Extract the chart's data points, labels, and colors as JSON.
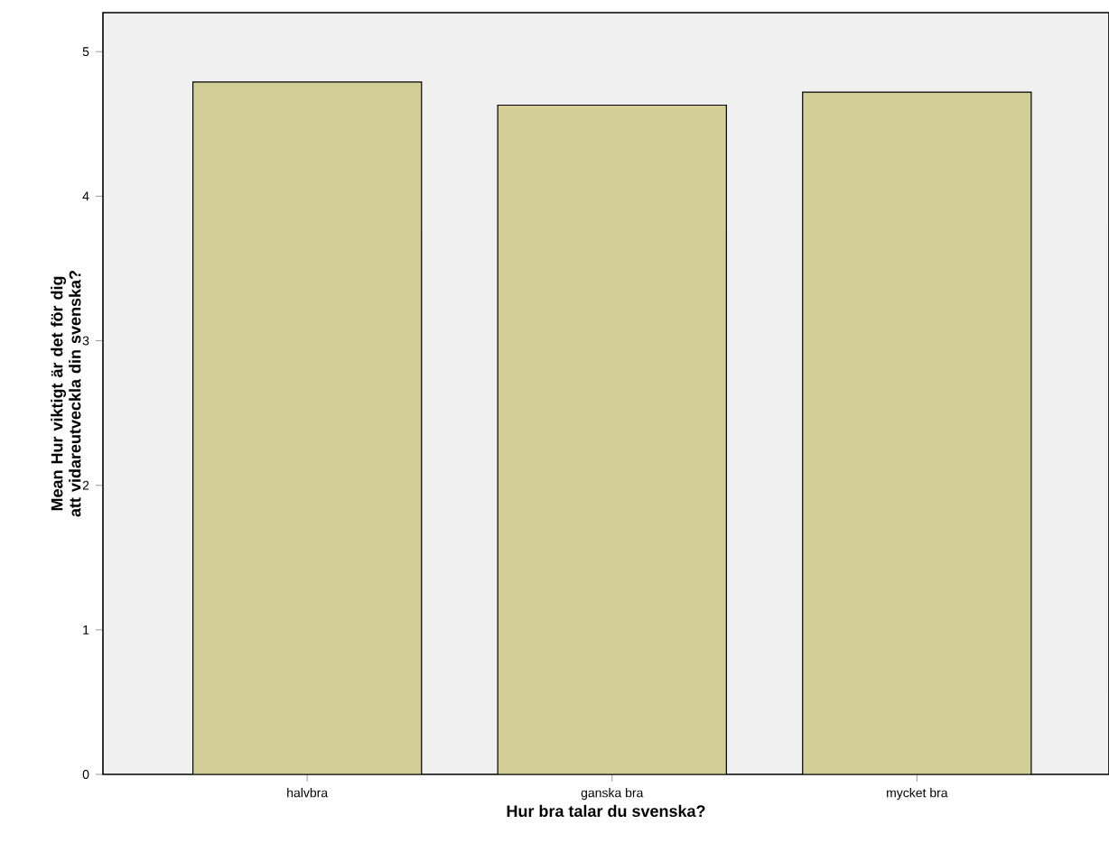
{
  "chart_data": {
    "type": "bar",
    "xlabel": "Hur bra talar du svenska?",
    "ylabel": "Mean Hur viktigt är det för dig att vidareutveckla din svenska?",
    "categories": [
      "halvbra",
      "ganska bra",
      "mycket bra"
    ],
    "values": [
      4.79,
      4.63,
      4.72
    ],
    "color": "#d3cd97",
    "ylim": [
      0,
      5.27
    ],
    "yticks": [
      0,
      1,
      2,
      3,
      4,
      5
    ],
    "grid": false
  }
}
